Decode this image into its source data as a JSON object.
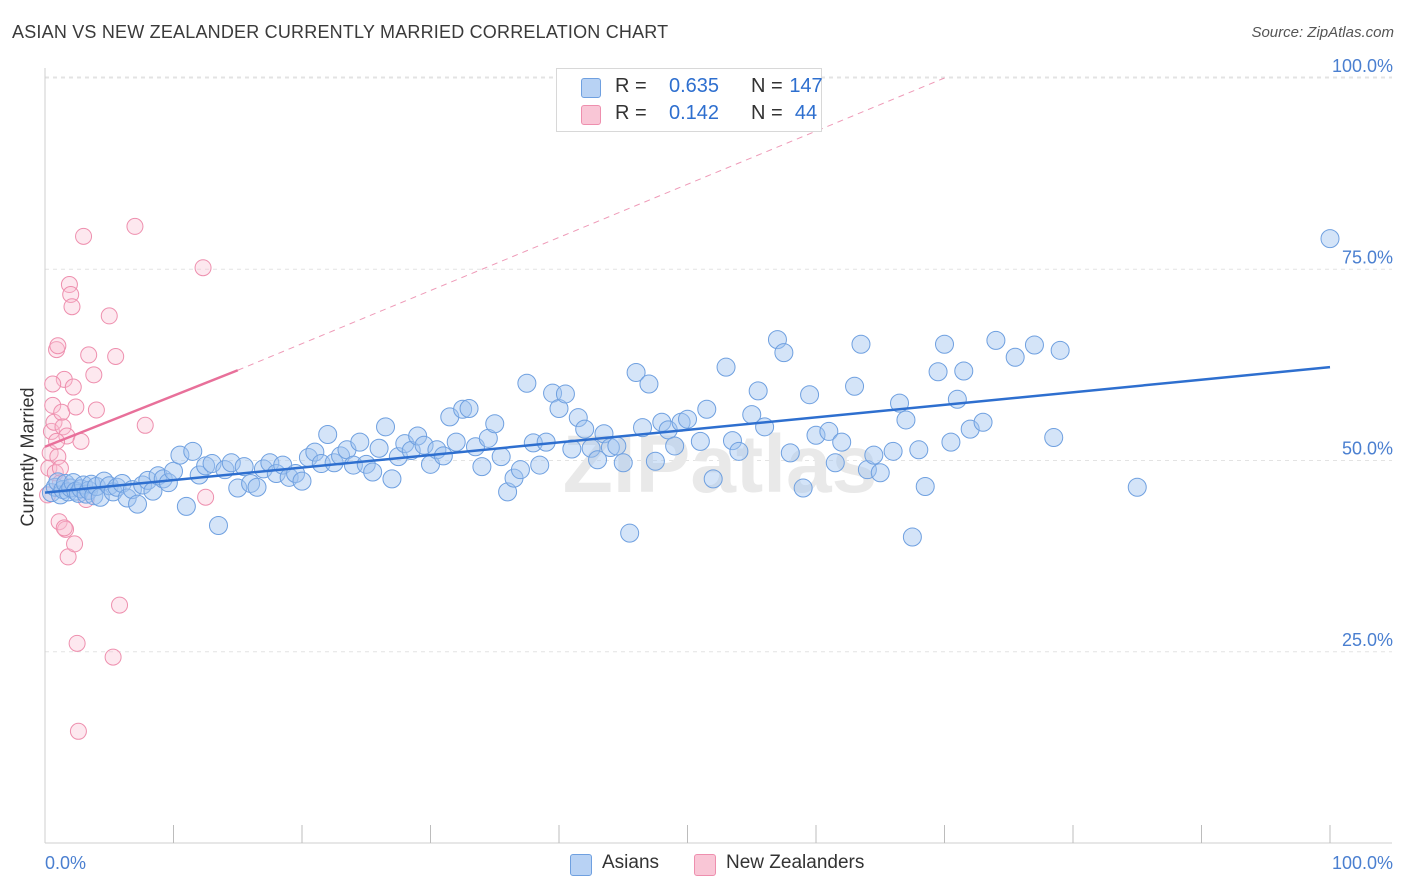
{
  "title": "ASIAN VS NEW ZEALANDER CURRENTLY MARRIED CORRELATION CHART",
  "source": "Source: ZipAtlas.com",
  "watermark": "ZIPatlas",
  "legend": {
    "rows": [
      {
        "r_label": "R =",
        "r_value": "0.635",
        "n_label": "N =",
        "n_value": "147",
        "color": "#6fa0e0"
      },
      {
        "r_label": "R =",
        "r_value": "0.142",
        "n_label": "N =",
        "n_value": "44",
        "color": "#f08cab"
      }
    ]
  },
  "bottom_legend": [
    {
      "label": "Asians",
      "color": "#a8c8f2"
    },
    {
      "label": "New Zealanders",
      "color": "#f8c0d0"
    }
  ],
  "colors": {
    "blue_point_fill": "rgba(160,196,240,0.45)",
    "blue_point_stroke": "#6fa0e0",
    "blue_line": "#2e6fcf",
    "pink_point_fill": "rgba(248,190,208,0.35)",
    "pink_point_stroke": "#ee8fae",
    "pink_line": "#e8709a",
    "tick_label": "#4a7fd0",
    "grid": "#e3e3e3"
  },
  "chart_data": {
    "type": "scatter",
    "title": "ASIAN VS NEW ZEALANDER CURRENTLY MARRIED CORRELATION CHART",
    "xlabel": "",
    "ylabel": "Currently Married",
    "xlim": [
      0,
      100
    ],
    "ylim": [
      0,
      105
    ],
    "x_tick_labels": [
      "0.0%",
      "100.0%"
    ],
    "y_tick_labels": [
      "25.0%",
      "50.0%",
      "75.0%",
      "100.0%"
    ],
    "y_ticks": [
      25,
      50,
      75,
      100
    ],
    "grid": true,
    "series": [
      {
        "name": "Asians",
        "trendline": {
          "x": [
            0,
            100
          ],
          "y": [
            45.8,
            62.2
          ],
          "style": "solid"
        },
        "points": [
          [
            0.5,
            45.8
          ],
          [
            0.8,
            46.5
          ],
          [
            1.0,
            47.2
          ],
          [
            1.2,
            45.5
          ],
          [
            1.4,
            46.2
          ],
          [
            1.6,
            47.0
          ],
          [
            1.8,
            45.9
          ],
          [
            2.0,
            46.4
          ],
          [
            2.2,
            47.1
          ],
          [
            2.4,
            46.0
          ],
          [
            2.6,
            45.7
          ],
          [
            2.8,
            46.3
          ],
          [
            3.0,
            46.8
          ],
          [
            3.2,
            45.6
          ],
          [
            3.4,
            46.1
          ],
          [
            3.6,
            46.9
          ],
          [
            3.8,
            45.4
          ],
          [
            4.0,
            46.6
          ],
          [
            4.3,
            45.2
          ],
          [
            4.6,
            47.3
          ],
          [
            5.0,
            46.7
          ],
          [
            5.3,
            45.9
          ],
          [
            5.6,
            46.5
          ],
          [
            6.0,
            47.0
          ],
          [
            6.4,
            45.1
          ],
          [
            6.8,
            46.2
          ],
          [
            7.2,
            44.3
          ],
          [
            7.6,
            46.8
          ],
          [
            8.0,
            47.4
          ],
          [
            8.4,
            46.0
          ],
          [
            8.8,
            48.0
          ],
          [
            9.2,
            47.6
          ],
          [
            9.6,
            47.1
          ],
          [
            10.0,
            48.6
          ],
          [
            10.5,
            50.7
          ],
          [
            11.0,
            44.0
          ],
          [
            11.5,
            51.2
          ],
          [
            12.0,
            48.1
          ],
          [
            12.5,
            49.3
          ],
          [
            13.0,
            49.6
          ],
          [
            13.5,
            41.5
          ],
          [
            14.0,
            48.8
          ],
          [
            14.5,
            49.7
          ],
          [
            15.0,
            46.4
          ],
          [
            15.5,
            49.2
          ],
          [
            16.0,
            47.0
          ],
          [
            16.5,
            46.5
          ],
          [
            17.0,
            48.9
          ],
          [
            17.5,
            49.7
          ],
          [
            18.0,
            48.3
          ],
          [
            18.5,
            49.4
          ],
          [
            19.0,
            47.8
          ],
          [
            19.5,
            48.3
          ],
          [
            20.0,
            47.3
          ],
          [
            20.5,
            50.4
          ],
          [
            21.0,
            51.1
          ],
          [
            21.5,
            49.6
          ],
          [
            22.0,
            53.4
          ],
          [
            22.5,
            49.7
          ],
          [
            23.0,
            50.6
          ],
          [
            23.5,
            51.4
          ],
          [
            24.0,
            49.4
          ],
          [
            24.5,
            52.4
          ],
          [
            25.0,
            49.5
          ],
          [
            25.5,
            48.5
          ],
          [
            26.0,
            51.6
          ],
          [
            26.5,
            54.4
          ],
          [
            27.0,
            47.6
          ],
          [
            27.5,
            50.5
          ],
          [
            28.0,
            52.2
          ],
          [
            28.5,
            51.3
          ],
          [
            29.0,
            53.2
          ],
          [
            29.5,
            52.0
          ],
          [
            30.0,
            49.5
          ],
          [
            30.5,
            51.4
          ],
          [
            31.0,
            50.6
          ],
          [
            31.5,
            55.7
          ],
          [
            32.0,
            52.4
          ],
          [
            32.5,
            56.7
          ],
          [
            33.0,
            56.8
          ],
          [
            33.5,
            51.8
          ],
          [
            34.0,
            49.2
          ],
          [
            34.5,
            52.9
          ],
          [
            35.0,
            54.8
          ],
          [
            35.5,
            50.5
          ],
          [
            36.0,
            45.9
          ],
          [
            36.5,
            47.7
          ],
          [
            37.0,
            48.8
          ],
          [
            37.5,
            60.1
          ],
          [
            38.0,
            52.3
          ],
          [
            38.5,
            49.4
          ],
          [
            39.0,
            52.4
          ],
          [
            39.5,
            58.8
          ],
          [
            40.0,
            56.8
          ],
          [
            40.5,
            58.7
          ],
          [
            41.0,
            51.5
          ],
          [
            41.5,
            55.6
          ],
          [
            42.0,
            54.1
          ],
          [
            42.5,
            51.6
          ],
          [
            43.0,
            50.1
          ],
          [
            43.5,
            53.5
          ],
          [
            44.0,
            51.7
          ],
          [
            44.5,
            51.9
          ],
          [
            45.0,
            49.7
          ],
          [
            45.5,
            40.5
          ],
          [
            46.0,
            61.5
          ],
          [
            46.5,
            54.3
          ],
          [
            47.0,
            60.0
          ],
          [
            47.5,
            49.9
          ],
          [
            48.0,
            55.0
          ],
          [
            48.5,
            54.0
          ],
          [
            49.0,
            51.9
          ],
          [
            49.5,
            55.0
          ],
          [
            50.0,
            55.4
          ],
          [
            51.0,
            52.5
          ],
          [
            51.5,
            56.7
          ],
          [
            52.0,
            47.6
          ],
          [
            53.0,
            62.2
          ],
          [
            53.5,
            52.6
          ],
          [
            54.0,
            51.2
          ],
          [
            55.0,
            56.0
          ],
          [
            55.5,
            59.1
          ],
          [
            56.0,
            54.4
          ],
          [
            57.0,
            65.8
          ],
          [
            57.5,
            64.1
          ],
          [
            58.0,
            51.0
          ],
          [
            59.0,
            46.4
          ],
          [
            59.5,
            58.6
          ],
          [
            60.0,
            53.3
          ],
          [
            61.0,
            53.8
          ],
          [
            61.5,
            49.7
          ],
          [
            62.0,
            52.4
          ],
          [
            63.0,
            59.7
          ],
          [
            63.5,
            65.2
          ],
          [
            64.0,
            48.8
          ],
          [
            64.5,
            50.7
          ],
          [
            65.0,
            48.4
          ],
          [
            66.0,
            51.2
          ],
          [
            66.5,
            57.5
          ],
          [
            67.0,
            55.3
          ],
          [
            67.5,
            40.0
          ],
          [
            68.0,
            51.4
          ],
          [
            68.5,
            46.6
          ],
          [
            69.5,
            61.6
          ],
          [
            70.0,
            65.2
          ],
          [
            70.5,
            52.4
          ],
          [
            71.0,
            58.0
          ],
          [
            71.5,
            61.7
          ],
          [
            72.0,
            54.1
          ],
          [
            73.0,
            55.0
          ],
          [
            74.0,
            65.7
          ],
          [
            75.5,
            63.5
          ],
          [
            77.0,
            65.1
          ],
          [
            79.0,
            64.4
          ],
          [
            85.0,
            46.5
          ],
          [
            100.0,
            79.0
          ],
          [
            78.5,
            53.0
          ]
        ]
      },
      {
        "name": "New Zealanders",
        "trendline": {
          "x": [
            0,
            15
          ],
          "y": [
            51.8,
            61.8
          ],
          "extended_to": [
            70,
            100
          ],
          "style": "solid_then_dashed"
        },
        "points": [
          [
            0.2,
            45.5
          ],
          [
            0.3,
            49.0
          ],
          [
            0.4,
            51.0
          ],
          [
            0.5,
            53.8
          ],
          [
            0.6,
            57.2
          ],
          [
            0.7,
            55.0
          ],
          [
            0.8,
            48.4
          ],
          [
            0.9,
            64.5
          ],
          [
            1.0,
            50.5
          ],
          [
            1.1,
            42.0
          ],
          [
            1.2,
            47.1
          ],
          [
            1.3,
            56.3
          ],
          [
            1.4,
            54.4
          ],
          [
            1.5,
            60.6
          ],
          [
            1.6,
            41.0
          ],
          [
            1.7,
            53.2
          ],
          [
            1.8,
            37.4
          ],
          [
            1.9,
            73.0
          ],
          [
            2.0,
            71.7
          ],
          [
            2.1,
            70.1
          ],
          [
            2.2,
            59.6
          ],
          [
            2.3,
            39.1
          ],
          [
            2.4,
            57.0
          ],
          [
            2.5,
            26.1
          ],
          [
            2.6,
            14.6
          ],
          [
            2.8,
            52.5
          ],
          [
            3.0,
            79.3
          ],
          [
            3.2,
            44.9
          ],
          [
            3.4,
            63.8
          ],
          [
            3.8,
            61.2
          ],
          [
            4.0,
            56.6
          ],
          [
            5.0,
            68.9
          ],
          [
            5.3,
            24.3
          ],
          [
            5.5,
            63.6
          ],
          [
            5.8,
            31.1
          ],
          [
            7.0,
            80.6
          ],
          [
            7.8,
            54.6
          ],
          [
            12.3,
            75.2
          ],
          [
            12.5,
            45.2
          ],
          [
            0.6,
            60.0
          ],
          [
            0.9,
            52.5
          ],
          [
            1.0,
            65.0
          ],
          [
            1.2,
            49.0
          ],
          [
            1.5,
            41.2
          ]
        ]
      }
    ]
  }
}
